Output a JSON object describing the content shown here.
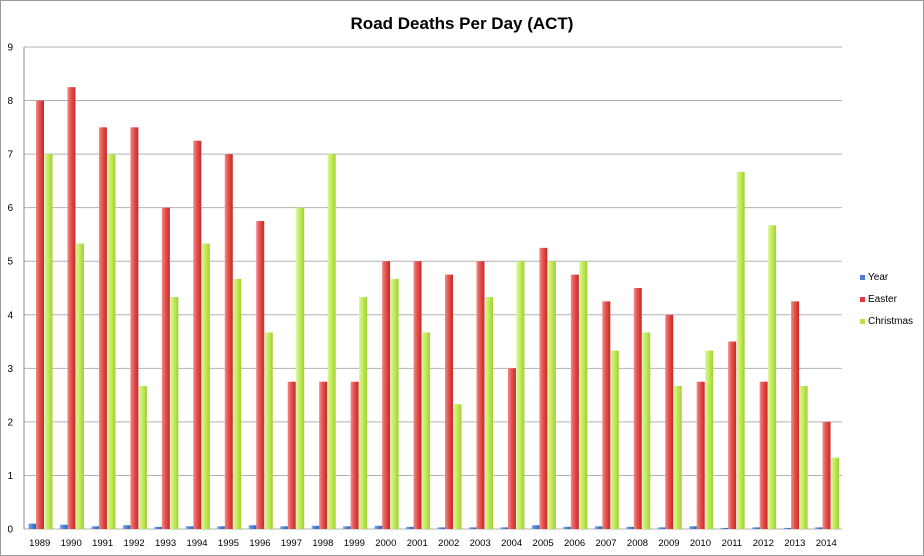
{
  "chart_data": {
    "type": "bar",
    "title": "Road Deaths Per Day (ACT)",
    "xlabel": "",
    "ylabel": "",
    "ylim": [
      0,
      9
    ],
    "yticks": [
      "0",
      "1",
      "2",
      "3",
      "4",
      "5",
      "6",
      "7",
      "8",
      "9"
    ],
    "grid": true,
    "legend_position": "right",
    "categories": [
      "1989",
      "1990",
      "1991",
      "1992",
      "1993",
      "1994",
      "1995",
      "1996",
      "1997",
      "1998",
      "1999",
      "2000",
      "2001",
      "2002",
      "2003",
      "2004",
      "2005",
      "2006",
      "2007",
      "2008",
      "2009",
      "2010",
      "2011",
      "2012",
      "2013",
      "2014"
    ],
    "series": [
      {
        "name": "Year",
        "color": "#4a7fd4",
        "values": [
          0.1,
          0.08,
          0.05,
          0.07,
          0.04,
          0.05,
          0.05,
          0.07,
          0.05,
          0.06,
          0.05,
          0.06,
          0.04,
          0.03,
          0.03,
          0.03,
          0.07,
          0.04,
          0.05,
          0.04,
          0.03,
          0.05,
          0.02,
          0.03,
          0.02,
          0.03
        ]
      },
      {
        "name": "Easter",
        "color": "#e23a36",
        "values": [
          8.0,
          8.25,
          7.5,
          7.5,
          6.0,
          7.25,
          7.0,
          5.75,
          2.75,
          2.75,
          2.75,
          5.0,
          5.0,
          4.75,
          5.0,
          3.0,
          5.25,
          4.75,
          4.25,
          4.5,
          4.0,
          2.75,
          3.5,
          2.75,
          4.25,
          2.0
        ]
      },
      {
        "name": "Christmas",
        "color": "#b8e34a",
        "values": [
          7.0,
          5.33,
          7.0,
          2.67,
          4.33,
          5.33,
          4.67,
          3.67,
          6.0,
          7.0,
          4.33,
          4.67,
          3.67,
          2.33,
          4.33,
          5.0,
          5.0,
          5.0,
          3.33,
          3.67,
          2.67,
          3.33,
          6.67,
          5.67,
          2.67,
          1.33
        ]
      }
    ]
  }
}
